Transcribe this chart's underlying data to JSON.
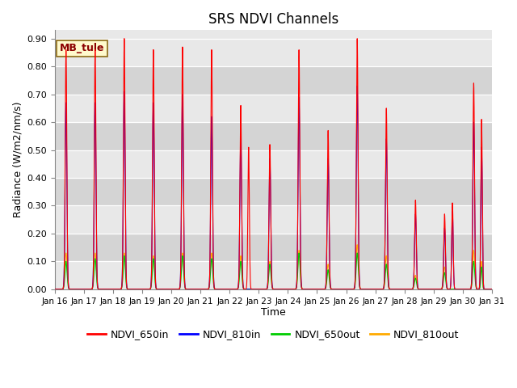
{
  "title": "SRS NDVI Channels",
  "xlabel": "Time",
  "ylabel": "Radiance (W/m2/nm/s)",
  "ylim": [
    0.0,
    0.93
  ],
  "yticks": [
    0.0,
    0.1,
    0.2,
    0.3,
    0.4,
    0.5,
    0.6,
    0.7,
    0.8,
    0.9
  ],
  "annotation": "MB_tule",
  "colors": {
    "NDVI_650in": "#ff0000",
    "NDVI_810in": "#0000ff",
    "NDVI_650out": "#00cc00",
    "NDVI_810out": "#ffaa00"
  },
  "bg_color_light": "#e8e8e8",
  "bg_color_dark": "#d8d8d8",
  "n_days": 15,
  "start_day": 16,
  "peak_650in": [
    0.86,
    0.86,
    0.9,
    0.86,
    0.87,
    0.86,
    0.66,
    0.52,
    0.86,
    0.57,
    0.9,
    0.65,
    0.32,
    0.27,
    0.74
  ],
  "peak_810in": [
    0.67,
    0.67,
    0.71,
    0.67,
    0.7,
    0.62,
    0.55,
    0.47,
    0.69,
    0.47,
    0.73,
    0.54,
    0.27,
    0.22,
    0.6
  ],
  "peak_650out": [
    0.1,
    0.11,
    0.12,
    0.11,
    0.12,
    0.11,
    0.1,
    0.09,
    0.13,
    0.07,
    0.13,
    0.09,
    0.04,
    0.06,
    0.1
  ],
  "peak_810out": [
    0.13,
    0.13,
    0.13,
    0.12,
    0.13,
    0.13,
    0.12,
    0.1,
    0.14,
    0.09,
    0.16,
    0.12,
    0.05,
    0.08,
    0.14
  ],
  "secondary_650in": [
    0.0,
    0.0,
    0.0,
    0.0,
    0.0,
    0.0,
    0.51,
    0.0,
    0.0,
    0.0,
    0.0,
    0.0,
    0.0,
    0.31,
    0.61
  ],
  "secondary_810in": [
    0.0,
    0.0,
    0.0,
    0.0,
    0.0,
    0.0,
    0.0,
    0.0,
    0.0,
    0.0,
    0.0,
    0.0,
    0.0,
    0.28,
    0.51
  ],
  "secondary_650out": [
    0.0,
    0.0,
    0.0,
    0.0,
    0.0,
    0.0,
    0.0,
    0.0,
    0.0,
    0.0,
    0.0,
    0.0,
    0.0,
    0.0,
    0.08
  ],
  "secondary_810out": [
    0.0,
    0.0,
    0.0,
    0.0,
    0.0,
    0.0,
    0.0,
    0.0,
    0.0,
    0.0,
    0.0,
    0.0,
    0.0,
    0.0,
    0.1
  ]
}
